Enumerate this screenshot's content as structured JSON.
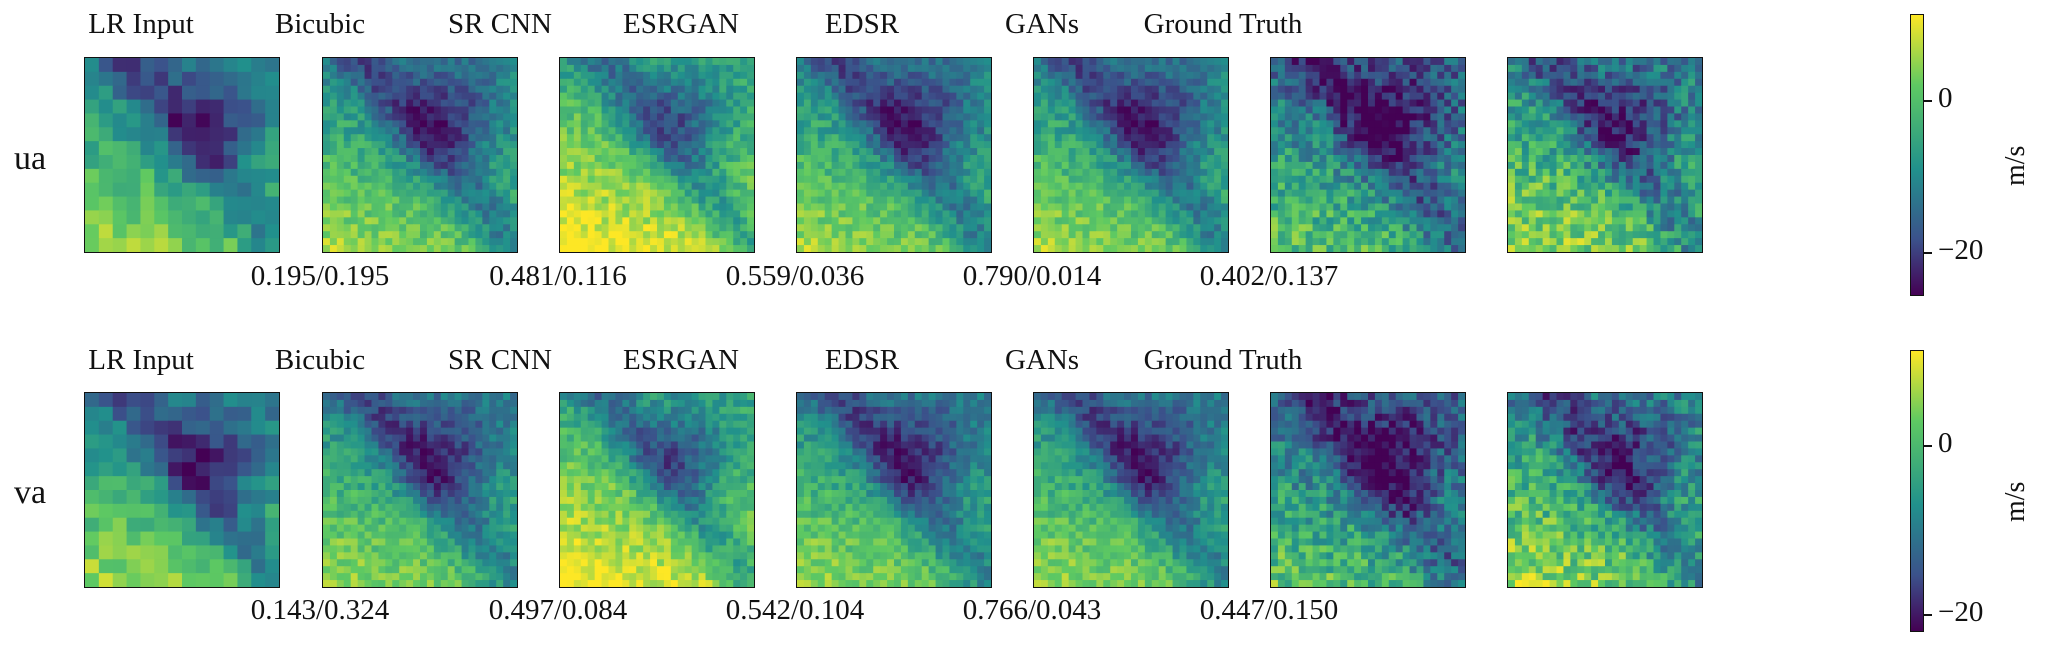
{
  "columns": [
    "LR Input",
    "Bicubic",
    "SR CNN",
    "ESRGAN",
    "EDSR",
    "GANs",
    "Ground Truth"
  ],
  "rows": [
    {
      "label": "ua",
      "metrics": [
        "",
        "0.195/0.195",
        "0.481/0.116",
        "0.559/0.036",
        "0.790/0.014",
        "0.402/0.137",
        ""
      ],
      "colorbar": {
        "unit": "m/s",
        "ticks": [
          "0",
          "−20"
        ],
        "range": [
          -26,
          11
        ],
        "tick_values": [
          0,
          -20
        ]
      }
    },
    {
      "label": "va",
      "metrics": [
        "",
        "0.143/0.324",
        "0.497/0.084",
        "0.542/0.104",
        "0.766/0.043",
        "0.447/0.150",
        ""
      ],
      "colorbar": {
        "unit": "m/s",
        "ticks": [
          "0",
          "−20"
        ],
        "range": [
          -22,
          11
        ],
        "tick_values": [
          0,
          -20
        ]
      }
    }
  ],
  "colormap": [
    "#440154",
    "#3b528b",
    "#21918c",
    "#5ec962",
    "#fde725"
  ]
}
